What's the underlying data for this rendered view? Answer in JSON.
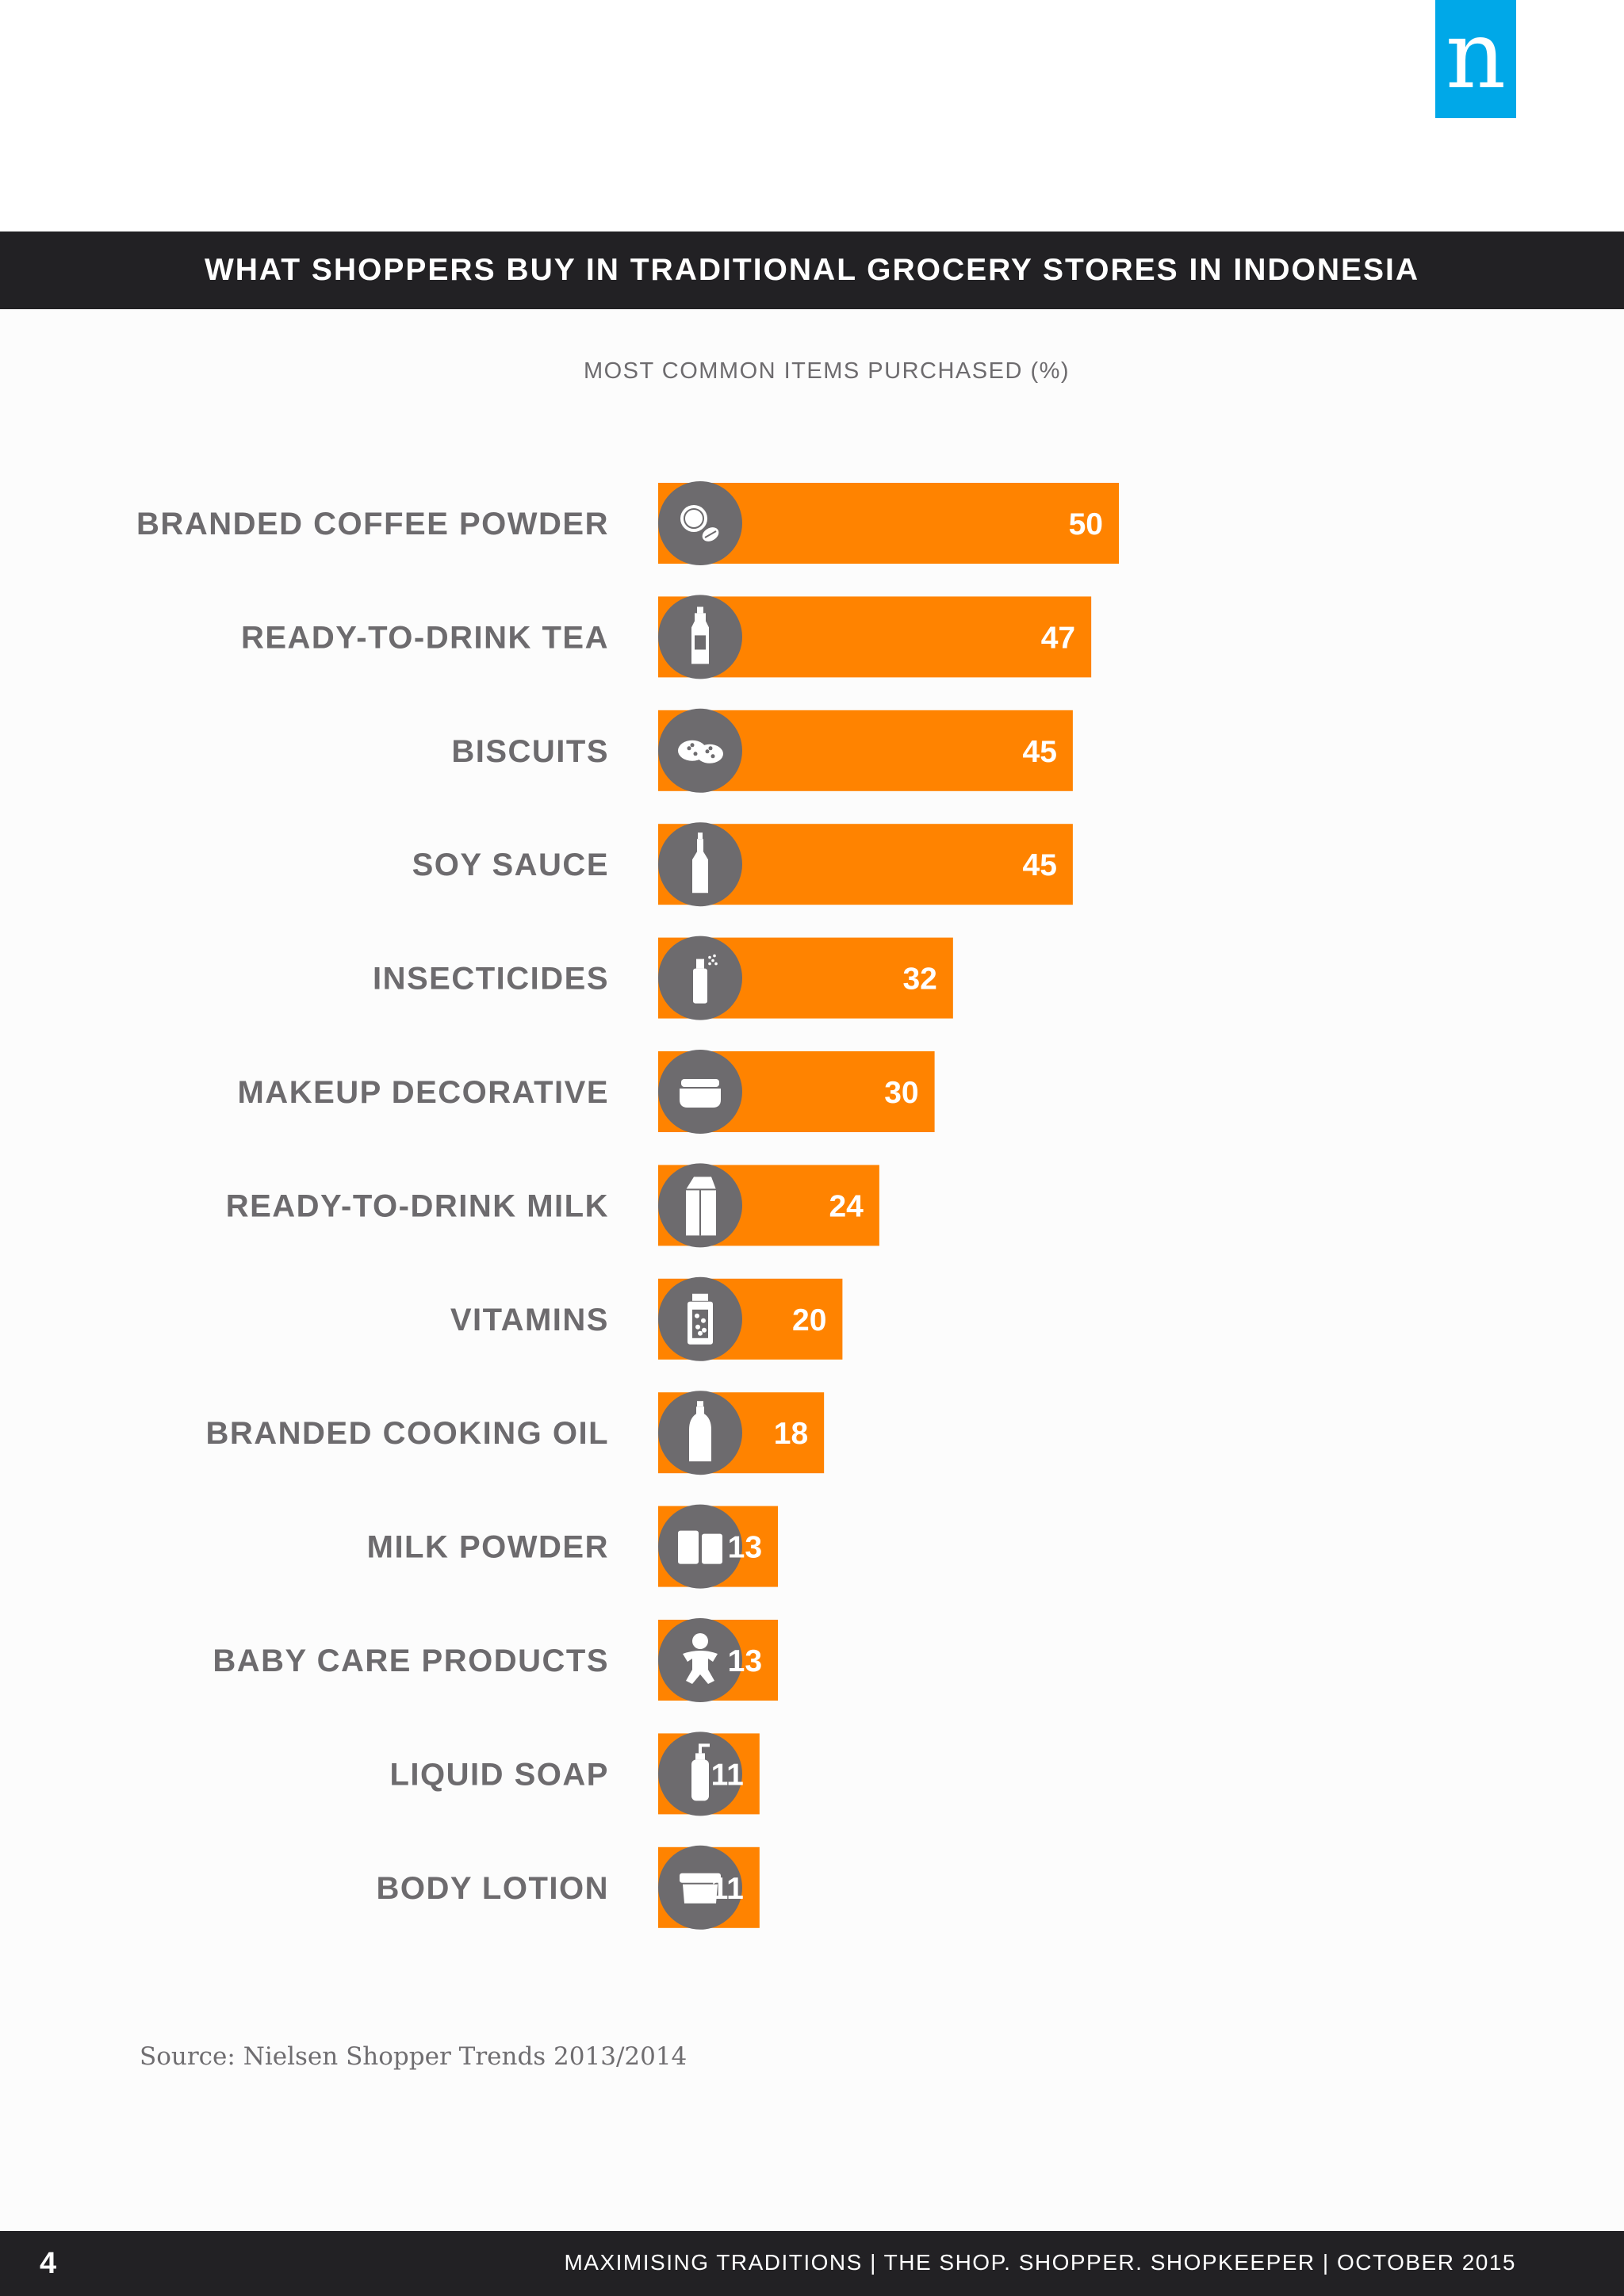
{
  "brand": {
    "logo_letter": "n"
  },
  "title": "WHAT SHOPPERS BUY IN TRADITIONAL GROCERY STORES IN INDONESIA",
  "subtitle": "MOST COMMON ITEMS PURCHASED (%)",
  "colors": {
    "bar": "#ff8300",
    "icon_circle": "#6d6b6e",
    "label": "#6d6b6e",
    "dark_band": "#222124",
    "logo": "#00a8e8"
  },
  "chart_data": {
    "type": "bar",
    "orientation": "horizontal",
    "title": "WHAT SHOPPERS BUY IN TRADITIONAL GROCERY STORES IN INDONESIA",
    "subtitle": "MOST COMMON ITEMS PURCHASED (%)",
    "categories": [
      "BRANDED COFFEE POWDER",
      "READY-TO-DRINK TEA",
      "BISCUITS",
      "SOY SAUCE",
      "INSECTICIDES",
      "MAKEUP DECORATIVE",
      "READY-TO-DRINK MILK",
      "VITAMINS",
      "BRANDED COOKING OIL",
      "MILK POWDER",
      "BABY CARE PRODUCTS",
      "LIQUID SOAP",
      "BODY LOTION"
    ],
    "values": [
      50,
      47,
      45,
      45,
      32,
      30,
      24,
      20,
      18,
      13,
      13,
      11,
      11
    ],
    "icons": [
      "coffee-beans-icon",
      "tea-bottle-icon",
      "cookies-icon",
      "sauce-bottle-icon",
      "spray-can-icon",
      "cosmetic-jar-icon",
      "milk-carton-icon",
      "vitamin-jar-icon",
      "oil-bottle-icon",
      "milk-tin-icon",
      "baby-icon",
      "soap-pump-icon",
      "lotion-jar-icon"
    ],
    "xlim": [
      0,
      50
    ],
    "grid": false,
    "legend": "none"
  },
  "source": "Source: Nielsen Shopper Trends 2013/2014",
  "footer": {
    "page_number": "4",
    "text": "MAXIMISING TRADITIONS | THE SHOP. SHOPPER. SHOPKEEPER | OCTOBER 2015"
  }
}
